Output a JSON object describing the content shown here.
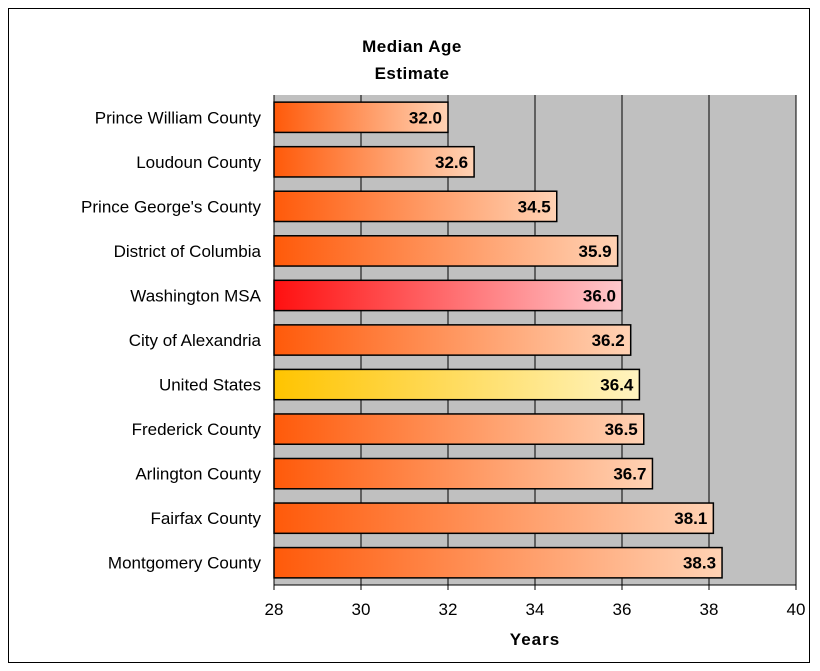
{
  "chart_data": {
    "type": "bar",
    "orientation": "horizontal",
    "title_lines": [
      "Median Age",
      "Estimate"
    ],
    "xlabel": "Years",
    "ylabel": "",
    "xlim": [
      28,
      40
    ],
    "xticks": [
      28,
      30,
      32,
      34,
      36,
      38,
      40
    ],
    "grid": "vertical",
    "legend": "none",
    "categories": [
      "Prince William County",
      "Loudoun County",
      "Prince George's County",
      "District of Columbia",
      "Washington MSA",
      "City of Alexandria",
      "United States",
      "Frederick County",
      "Arlington County",
      "Fairfax County",
      "Montgomery County"
    ],
    "values": [
      32.0,
      32.6,
      34.5,
      35.9,
      36.0,
      36.2,
      36.4,
      36.5,
      36.7,
      38.1,
      38.3
    ],
    "value_labels": [
      "32.0",
      "32.6",
      "34.5",
      "35.9",
      "36.0",
      "36.2",
      "36.4",
      "36.5",
      "36.7",
      "38.1",
      "38.3"
    ],
    "bar_styles": [
      "county",
      "county",
      "county",
      "county",
      "msa",
      "county",
      "us",
      "county",
      "county",
      "county",
      "county"
    ],
    "colors": {
      "plot_background": "#c0c0c0",
      "county_start": "#ff5a0a",
      "county_end": "#ffd2b4",
      "msa_start": "#ff1010",
      "msa_end": "#ffc8cc",
      "us_start": "#ffc400",
      "us_end": "#fff4c0",
      "gridline": "#000000"
    }
  }
}
